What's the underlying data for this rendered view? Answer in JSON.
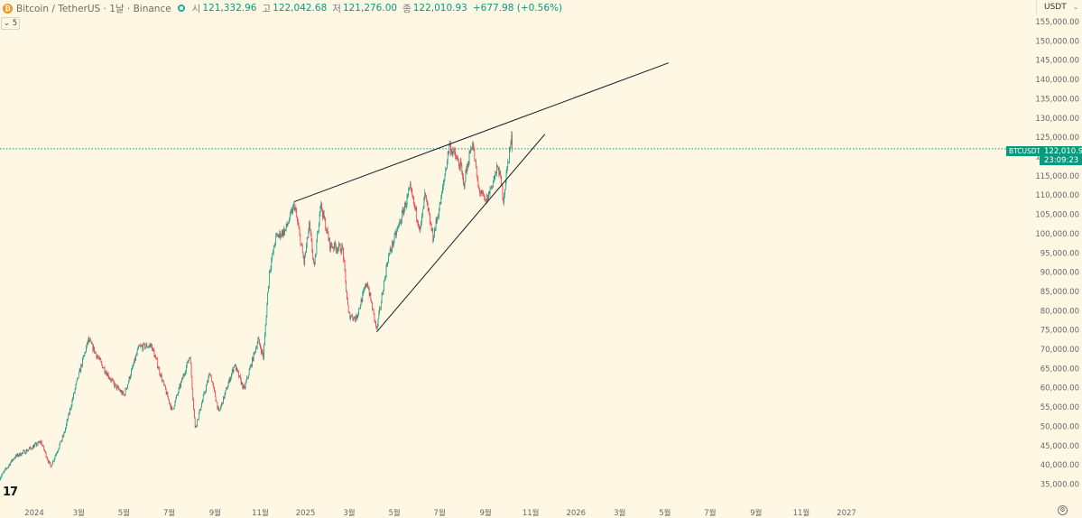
{
  "header": {
    "coin_icon_letter": "₿",
    "symbol_text": "Bitcoin / TetherUS · 1날 · Binance",
    "open_label": "시",
    "open_value": "121,332.96",
    "high_label": "고",
    "high_value": "122,042.68",
    "low_label": "저",
    "low_value": "121,276.00",
    "close_label": "종",
    "close_value": "122,010.93",
    "change_value": "+677.98 (+0.56%)"
  },
  "toolbar": {
    "interval_toggle": "⌄ 5"
  },
  "currency_selector": {
    "label": "USDT",
    "chevron": "⌄"
  },
  "price_tag": {
    "symbol": "BTCUSDT",
    "price": "122,010.93",
    "countdown": "23:09:23"
  },
  "logo": {
    "text": "17"
  },
  "colors": {
    "up": "#089981",
    "down": "#f23645",
    "background": "#fdf7e4",
    "line": "#131722"
  },
  "chart_data": {
    "type": "candlestick",
    "title": "",
    "ylim": [
      32000,
      158000
    ],
    "y_ticks": [
      35000,
      40000,
      45000,
      50000,
      55000,
      60000,
      65000,
      70000,
      75000,
      80000,
      85000,
      90000,
      95000,
      100000,
      105000,
      110000,
      115000,
      120000,
      125000,
      130000,
      135000,
      140000,
      145000,
      150000,
      155000
    ],
    "y_tick_labels": [
      "35,000.00",
      "40,000.00",
      "45,000.00",
      "50,000.00",
      "55,000.00",
      "60,000.00",
      "65,000.00",
      "70,000.00",
      "75,000.00",
      "80,000.00",
      "85,000.00",
      "90,000.00",
      "95,000.00",
      "100,000.00",
      "105,000.00",
      "110,000.00",
      "115,000.00",
      "120,000.00",
      "125,000.00",
      "130,000.00",
      "135,000.00",
      "140,000.00",
      "145,000.00",
      "150,000.00",
      "155,000.00"
    ],
    "x_labels": [
      {
        "date": "2024-01-01",
        "label": "2024"
      },
      {
        "date": "2024-03-01",
        "label": "3월"
      },
      {
        "date": "2024-05-01",
        "label": "5월"
      },
      {
        "date": "2024-07-01",
        "label": "7월"
      },
      {
        "date": "2024-09-01",
        "label": "9월"
      },
      {
        "date": "2024-11-01",
        "label": "11월"
      },
      {
        "date": "2025-01-01",
        "label": "2025"
      },
      {
        "date": "2025-03-01",
        "label": "3월"
      },
      {
        "date": "2025-05-01",
        "label": "5월"
      },
      {
        "date": "2025-07-01",
        "label": "7월"
      },
      {
        "date": "2025-09-01",
        "label": "9월"
      },
      {
        "date": "2025-11-01",
        "label": "11월"
      },
      {
        "date": "2026-01-01",
        "label": "2026"
      },
      {
        "date": "2026-03-01",
        "label": "3월"
      },
      {
        "date": "2026-05-01",
        "label": "5월"
      },
      {
        "date": "2026-07-01",
        "label": "7월"
      },
      {
        "date": "2026-09-01",
        "label": "9월"
      },
      {
        "date": "2026-11-01",
        "label": "11월"
      },
      {
        "date": "2027-01-01",
        "label": "2027"
      }
    ],
    "last_price": 122010.93,
    "price_path": [
      [
        "2023-11-15",
        36500
      ],
      [
        "2023-12-05",
        42000
      ],
      [
        "2023-12-20",
        43500
      ],
      [
        "2024-01-10",
        46000
      ],
      [
        "2024-01-23",
        39500
      ],
      [
        "2024-02-10",
        48000
      ],
      [
        "2024-02-28",
        62000
      ],
      [
        "2024-03-14",
        72500
      ],
      [
        "2024-04-01",
        66000
      ],
      [
        "2024-04-17",
        61000
      ],
      [
        "2024-05-01",
        58000
      ],
      [
        "2024-05-21",
        70500
      ],
      [
        "2024-06-07",
        71000
      ],
      [
        "2024-06-24",
        60500
      ],
      [
        "2024-07-05",
        54000
      ],
      [
        "2024-07-29",
        68500
      ],
      [
        "2024-08-05",
        49500
      ],
      [
        "2024-08-25",
        64000
      ],
      [
        "2024-09-06",
        53500
      ],
      [
        "2024-09-27",
        66000
      ],
      [
        "2024-10-10",
        59500
      ],
      [
        "2024-10-29",
        72500
      ],
      [
        "2024-11-05",
        68000
      ],
      [
        "2024-11-13",
        90000
      ],
      [
        "2024-11-22",
        99000
      ],
      [
        "2024-12-05",
        101000
      ],
      [
        "2024-12-17",
        107500
      ],
      [
        "2024-12-30",
        92500
      ],
      [
        "2025-01-06",
        102000
      ],
      [
        "2025-01-13",
        91000
      ],
      [
        "2025-01-21",
        108000
      ],
      [
        "2025-02-03",
        97000
      ],
      [
        "2025-02-20",
        96000
      ],
      [
        "2025-02-28",
        79000
      ],
      [
        "2025-03-10",
        78000
      ],
      [
        "2025-03-25",
        87500
      ],
      [
        "2025-04-07",
        75000
      ],
      [
        "2025-04-22",
        93500
      ],
      [
        "2025-05-10",
        104000
      ],
      [
        "2025-05-22",
        111500
      ],
      [
        "2025-06-05",
        101000
      ],
      [
        "2025-06-11",
        110000
      ],
      [
        "2025-06-22",
        99000
      ],
      [
        "2025-07-03",
        109000
      ],
      [
        "2025-07-14",
        123000
      ],
      [
        "2025-07-30",
        117000
      ],
      [
        "2025-08-02",
        112500
      ],
      [
        "2025-08-14",
        124000
      ],
      [
        "2025-08-22",
        112000
      ],
      [
        "2025-09-01",
        108000
      ],
      [
        "2025-09-18",
        117500
      ],
      [
        "2025-09-25",
        109000
      ],
      [
        "2025-10-03",
        121500
      ],
      [
        "2025-10-06",
        124500
      ],
      [
        "2025-10-07",
        122010.93
      ]
    ],
    "trendlines": [
      {
        "name": "upper",
        "points": [
          [
            "2024-12-17",
            108300
          ],
          [
            "2026-05-06",
            144300
          ]
        ]
      },
      {
        "name": "lower",
        "points": [
          [
            "2025-04-07",
            74500
          ],
          [
            "2025-11-20",
            125800
          ]
        ]
      }
    ]
  }
}
